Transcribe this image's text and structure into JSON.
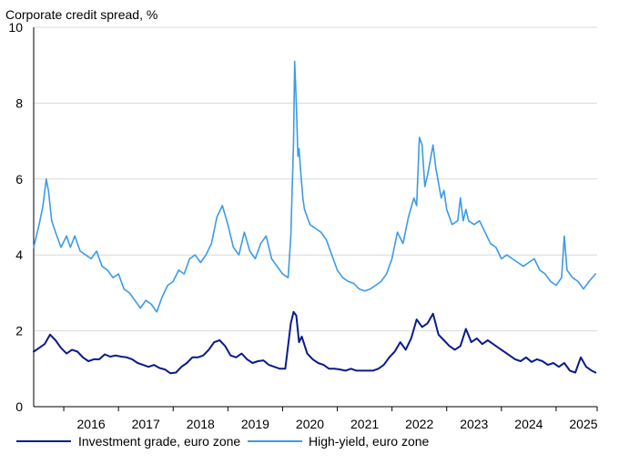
{
  "chart_data": {
    "type": "line",
    "ylabel": "Corporate credit spread, %",
    "ylim": [
      0,
      10
    ],
    "yticks": [
      "0",
      "2",
      "4",
      "6",
      "8",
      "10"
    ],
    "xlim": [
      2015.45,
      2025.75
    ],
    "year_labels": [
      "2016",
      "2017",
      "2018",
      "2019",
      "2020",
      "2021",
      "2022",
      "2023",
      "2024",
      "2025"
    ],
    "grid": "horizontal",
    "legend_position": "bottom",
    "colors": {
      "investment_grade": "#0a1a8c",
      "high_yield": "#3c9be8"
    },
    "series": [
      {
        "name": "Investment grade, euro zone",
        "key": "investment_grade",
        "x": [
          2015.45,
          2015.55,
          2015.65,
          2015.75,
          2015.85,
          2015.95,
          2016.05,
          2016.15,
          2016.25,
          2016.35,
          2016.45,
          2016.55,
          2016.65,
          2016.75,
          2016.85,
          2016.95,
          2017.05,
          2017.15,
          2017.25,
          2017.35,
          2017.45,
          2017.55,
          2017.65,
          2017.75,
          2017.85,
          2017.95,
          2018.05,
          2018.15,
          2018.25,
          2018.35,
          2018.45,
          2018.55,
          2018.65,
          2018.75,
          2018.85,
          2018.95,
          2019.05,
          2019.15,
          2019.25,
          2019.35,
          2019.45,
          2019.55,
          2019.65,
          2019.75,
          2019.85,
          2019.95,
          2020.05,
          2020.15,
          2020.2,
          2020.25,
          2020.3,
          2020.35,
          2020.45,
          2020.55,
          2020.65,
          2020.75,
          2020.85,
          2020.95,
          2021.05,
          2021.15,
          2021.25,
          2021.35,
          2021.45,
          2021.55,
          2021.65,
          2021.75,
          2021.85,
          2021.95,
          2022.05,
          2022.15,
          2022.25,
          2022.35,
          2022.45,
          2022.55,
          2022.65,
          2022.75,
          2022.85,
          2022.95,
          2023.05,
          2023.15,
          2023.25,
          2023.35,
          2023.45,
          2023.55,
          2023.65,
          2023.75,
          2023.85,
          2023.95,
          2024.05,
          2024.15,
          2024.25,
          2024.35,
          2024.45,
          2024.55,
          2024.65,
          2024.75,
          2024.85,
          2024.95,
          2025.05,
          2025.15,
          2025.25,
          2025.35,
          2025.45,
          2025.55,
          2025.65,
          2025.72
        ],
        "values": [
          1.45,
          1.55,
          1.65,
          1.9,
          1.75,
          1.55,
          1.4,
          1.5,
          1.45,
          1.3,
          1.2,
          1.25,
          1.25,
          1.38,
          1.32,
          1.35,
          1.32,
          1.3,
          1.25,
          1.15,
          1.1,
          1.05,
          1.1,
          1.02,
          0.98,
          0.88,
          0.9,
          1.05,
          1.15,
          1.3,
          1.3,
          1.35,
          1.5,
          1.7,
          1.75,
          1.6,
          1.35,
          1.3,
          1.4,
          1.25,
          1.15,
          1.2,
          1.22,
          1.1,
          1.05,
          1.0,
          1.0,
          2.2,
          2.5,
          2.4,
          1.7,
          1.85,
          1.4,
          1.25,
          1.15,
          1.1,
          1.0,
          1.0,
          0.98,
          0.95,
          1.0,
          0.95,
          0.95,
          0.95,
          0.95,
          1.0,
          1.1,
          1.3,
          1.45,
          1.7,
          1.5,
          1.8,
          2.3,
          2.1,
          2.2,
          2.45,
          1.9,
          1.75,
          1.6,
          1.5,
          1.6,
          2.05,
          1.7,
          1.8,
          1.65,
          1.75,
          1.65,
          1.55,
          1.45,
          1.35,
          1.25,
          1.2,
          1.3,
          1.18,
          1.25,
          1.2,
          1.1,
          1.15,
          1.05,
          1.15,
          0.95,
          0.9,
          1.3,
          1.05,
          0.95,
          0.9
        ]
      },
      {
        "name": "High-yield, euro zone",
        "key": "high_yield",
        "x": [
          2015.45,
          2015.55,
          2015.62,
          2015.68,
          2015.72,
          2015.78,
          2015.85,
          2015.95,
          2016.05,
          2016.12,
          2016.2,
          2016.3,
          2016.4,
          2016.5,
          2016.6,
          2016.7,
          2016.8,
          2016.9,
          2017.0,
          2017.1,
          2017.2,
          2017.3,
          2017.4,
          2017.5,
          2017.6,
          2017.7,
          2017.8,
          2017.9,
          2018.0,
          2018.1,
          2018.2,
          2018.3,
          2018.4,
          2018.5,
          2018.6,
          2018.7,
          2018.8,
          2018.9,
          2019.0,
          2019.1,
          2019.2,
          2019.3,
          2019.4,
          2019.5,
          2019.6,
          2019.7,
          2019.8,
          2019.9,
          2020.0,
          2020.1,
          2020.15,
          2020.2,
          2020.22,
          2020.25,
          2020.28,
          2020.3,
          2020.33,
          2020.37,
          2020.4,
          2020.45,
          2020.5,
          2020.6,
          2020.7,
          2020.8,
          2020.9,
          2021.0,
          2021.1,
          2021.2,
          2021.3,
          2021.4,
          2021.5,
          2021.6,
          2021.7,
          2021.8,
          2021.9,
          2022.0,
          2022.1,
          2022.2,
          2022.3,
          2022.4,
          2022.45,
          2022.5,
          2022.55,
          2022.6,
          2022.65,
          2022.7,
          2022.75,
          2022.8,
          2022.85,
          2022.9,
          2022.95,
          2023.0,
          2023.1,
          2023.2,
          2023.25,
          2023.3,
          2023.35,
          2023.4,
          2023.5,
          2023.6,
          2023.7,
          2023.8,
          2023.9,
          2024.0,
          2024.1,
          2024.2,
          2024.3,
          2024.4,
          2024.5,
          2024.6,
          2024.7,
          2024.8,
          2024.9,
          2025.0,
          2025.1,
          2025.15,
          2025.2,
          2025.3,
          2025.4,
          2025.5,
          2025.6,
          2025.72
        ],
        "values": [
          4.2,
          4.8,
          5.3,
          6.0,
          5.7,
          4.9,
          4.6,
          4.2,
          4.5,
          4.2,
          4.5,
          4.1,
          4.0,
          3.9,
          4.1,
          3.7,
          3.6,
          3.4,
          3.5,
          3.1,
          3.0,
          2.8,
          2.6,
          2.8,
          2.7,
          2.5,
          2.9,
          3.2,
          3.3,
          3.6,
          3.5,
          3.9,
          4.0,
          3.8,
          4.0,
          4.3,
          5.0,
          5.3,
          4.8,
          4.2,
          4.0,
          4.6,
          4.1,
          3.9,
          4.3,
          4.5,
          3.9,
          3.7,
          3.5,
          3.4,
          4.5,
          7.0,
          9.1,
          8.0,
          6.6,
          6.8,
          6.2,
          5.5,
          5.2,
          5.0,
          4.8,
          4.7,
          4.6,
          4.4,
          4.0,
          3.6,
          3.4,
          3.3,
          3.25,
          3.1,
          3.05,
          3.1,
          3.2,
          3.3,
          3.5,
          3.9,
          4.6,
          4.3,
          5.0,
          5.5,
          5.3,
          7.1,
          6.9,
          5.8,
          6.1,
          6.5,
          6.9,
          6.3,
          5.9,
          5.5,
          5.7,
          5.2,
          4.8,
          4.9,
          5.5,
          4.9,
          5.2,
          4.9,
          4.8,
          4.9,
          4.6,
          4.3,
          4.2,
          3.9,
          4.0,
          3.9,
          3.8,
          3.7,
          3.8,
          3.9,
          3.6,
          3.5,
          3.3,
          3.2,
          3.4,
          4.5,
          3.6,
          3.4,
          3.3,
          3.1,
          3.3,
          3.5
        ]
      }
    ]
  }
}
